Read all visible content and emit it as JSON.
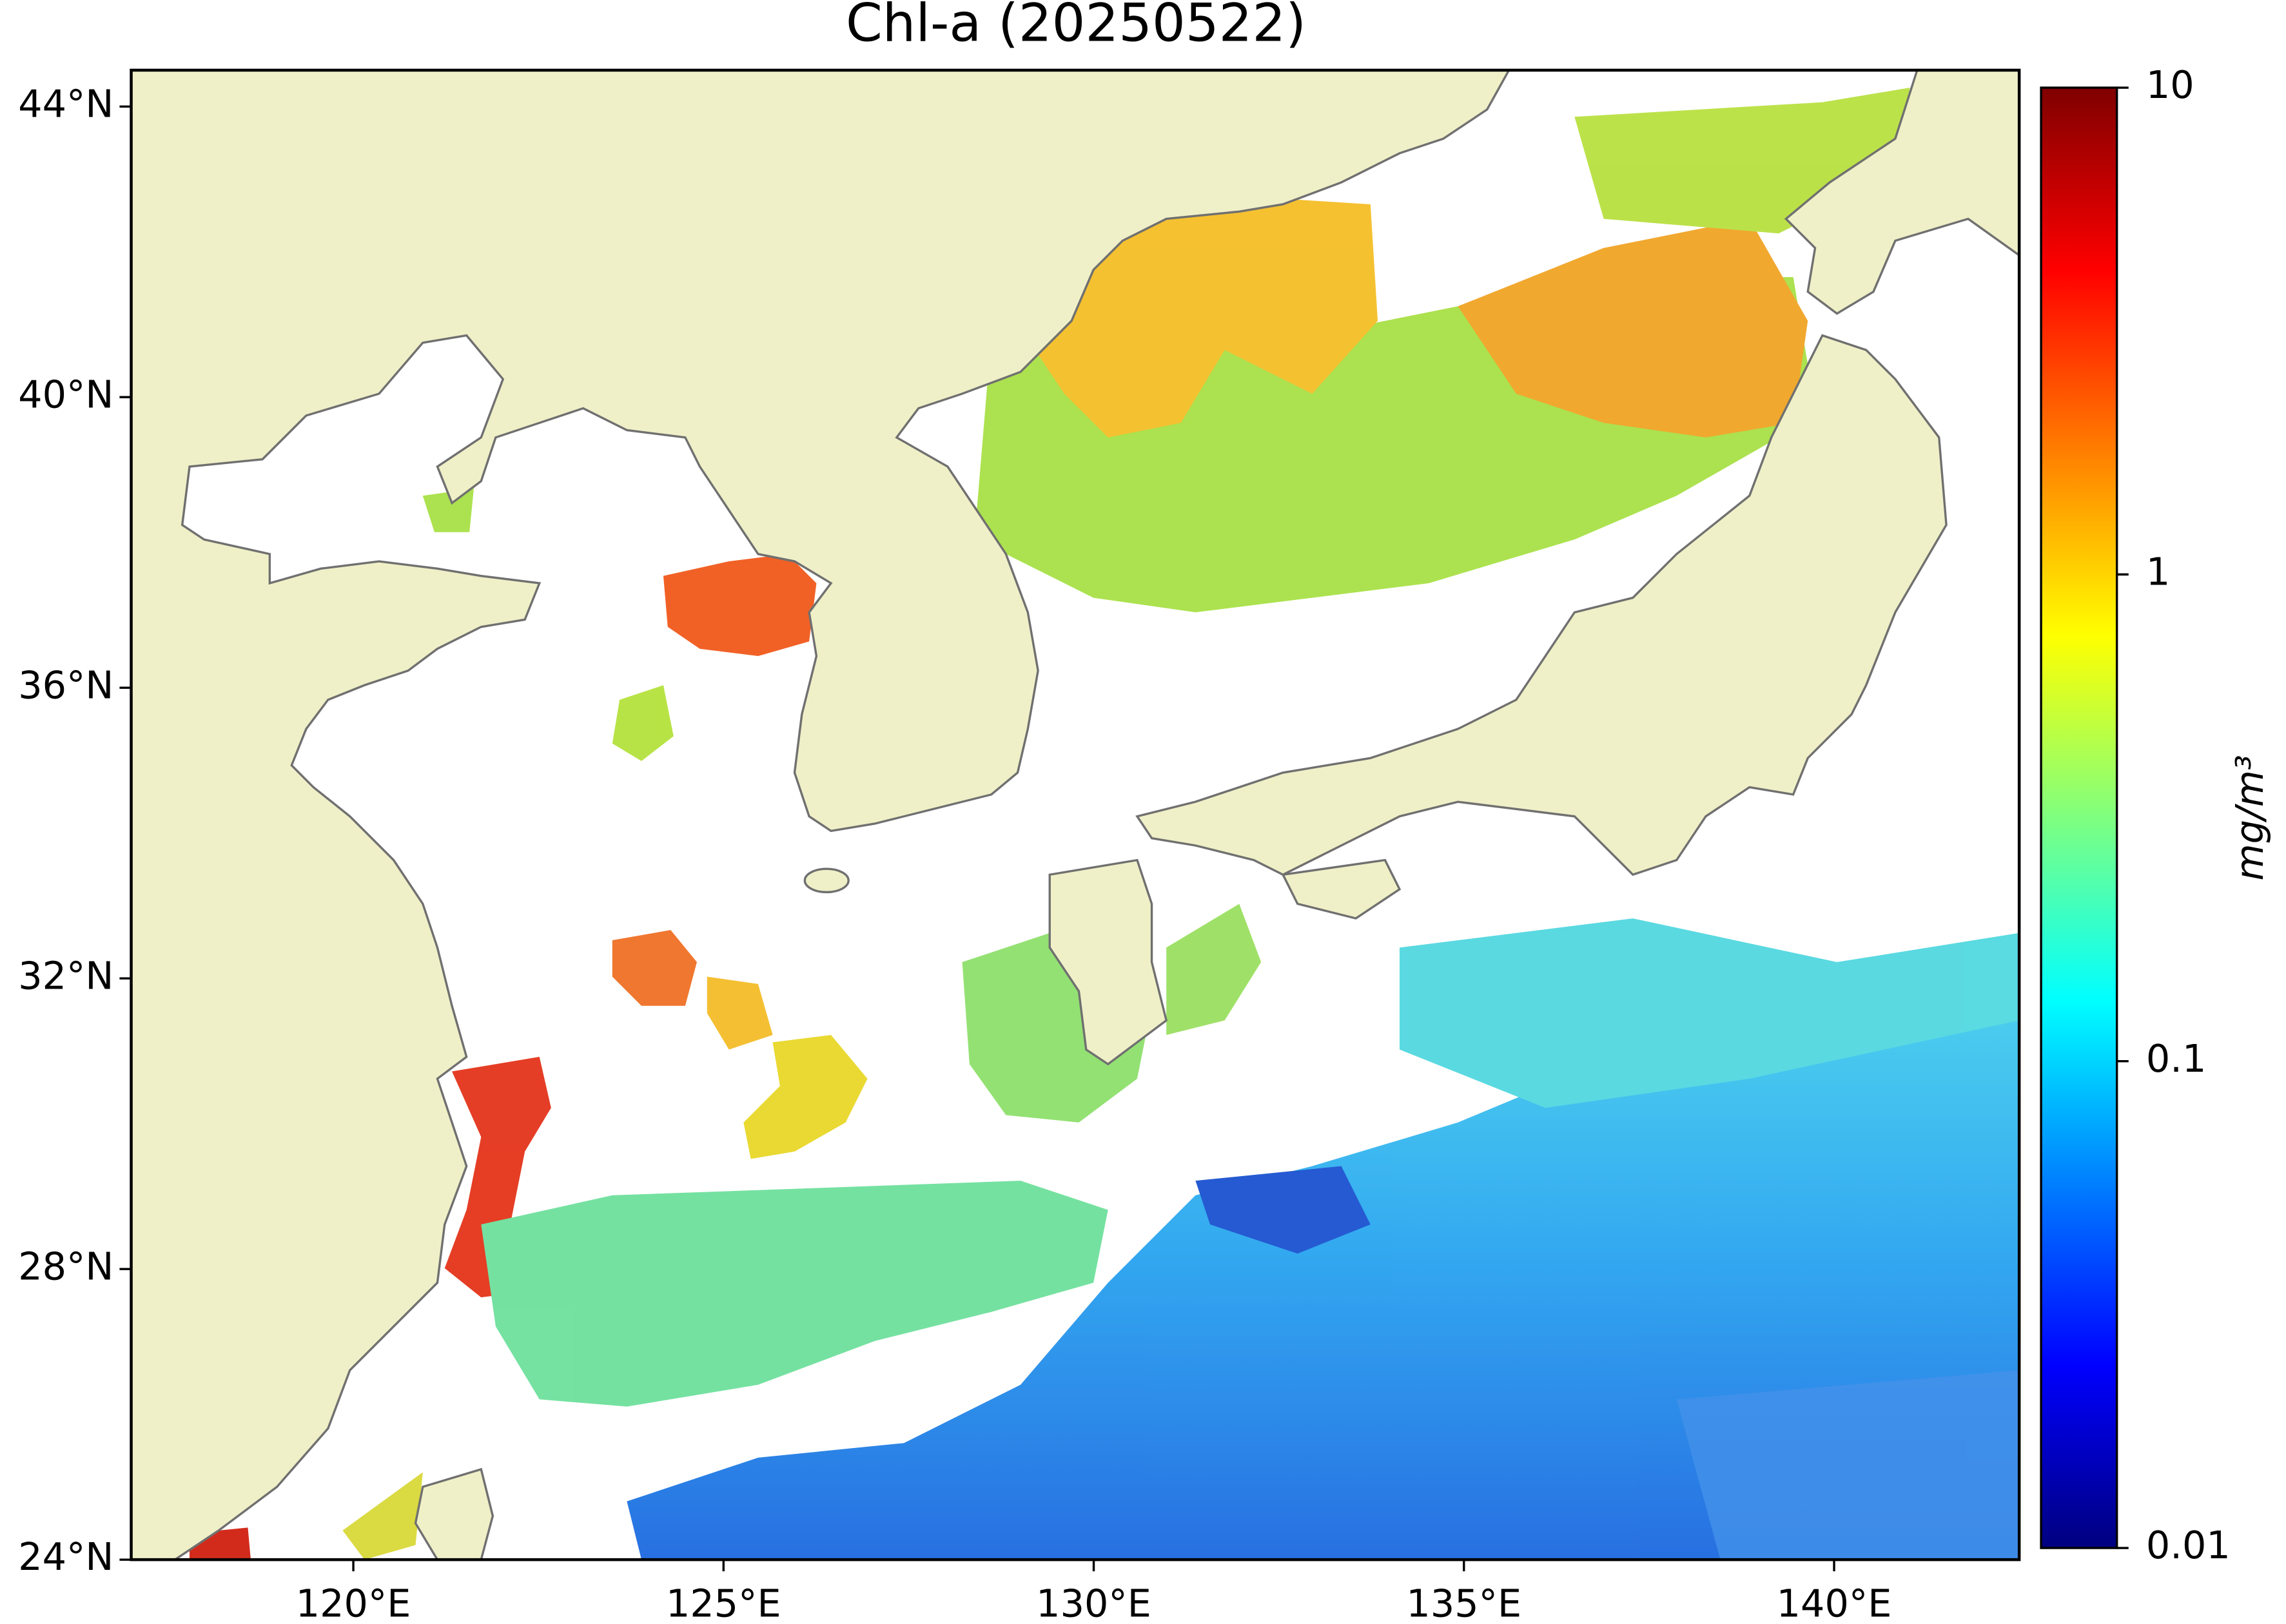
{
  "chart_data": {
    "type": "map",
    "title": "Chl-a (20250522)",
    "xlim": [
      117,
      142.5
    ],
    "ylim": [
      24,
      44.5
    ],
    "xticks": [
      {
        "value": 120,
        "label": "120°E"
      },
      {
        "value": 125,
        "label": "125°E"
      },
      {
        "value": 130,
        "label": "130°E"
      },
      {
        "value": 135,
        "label": "135°E"
      },
      {
        "value": 140,
        "label": "140°E"
      }
    ],
    "yticks": [
      {
        "value": 24,
        "label": "24°N"
      },
      {
        "value": 28,
        "label": "28°N"
      },
      {
        "value": 32,
        "label": "32°N"
      },
      {
        "value": 36,
        "label": "36°N"
      },
      {
        "value": 40,
        "label": "40°N"
      },
      {
        "value": 44,
        "label": "44°N"
      }
    ],
    "land_color": "#f0f0c8",
    "coast_color": "#707070",
    "colorbar": {
      "label": "mg/m³",
      "scale": "log",
      "colormap": "jet",
      "lim": [
        0.01,
        10
      ],
      "ticks": [
        0.01,
        0.1,
        1,
        10
      ]
    }
  }
}
